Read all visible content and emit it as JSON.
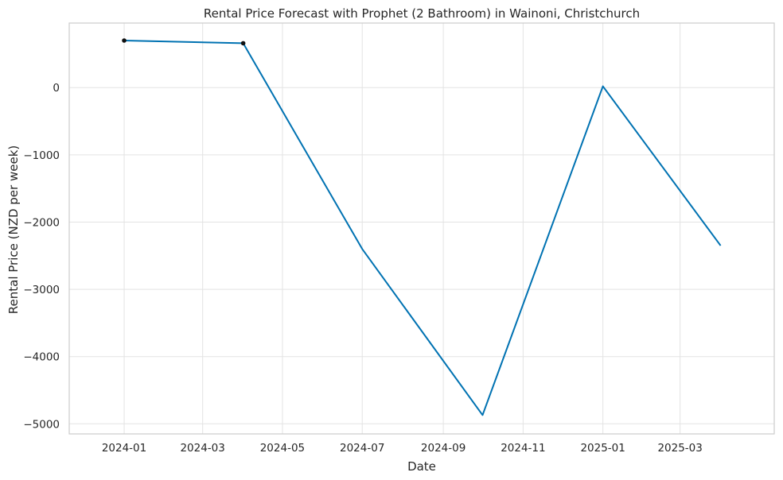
{
  "chart_data": {
    "type": "line",
    "title": "Rental Price Forecast with Prophet (2 Bathroom) in Wainoni, Christchurch",
    "xlabel": "Date",
    "ylabel": "Rental Price (NZD per week)",
    "x_ticks": [
      "2024-01",
      "2024-03",
      "2024-05",
      "2024-07",
      "2024-09",
      "2024-11",
      "2025-01",
      "2025-03"
    ],
    "y_ticks": [
      0,
      -1000,
      -2000,
      -3000,
      -4000,
      -5000
    ],
    "y_tick_labels": [
      "0",
      "−1000",
      "−2000",
      "−3000",
      "−4000",
      "−5000"
    ],
    "xlim": [
      "2023-11-20",
      "2025-05-12"
    ],
    "ylim": [
      -5150,
      960
    ],
    "grid": true,
    "series": [
      {
        "values": [
          {
            "x": "2024-01-01",
            "y": 700
          },
          {
            "x": "2024-04-01",
            "y": 660
          },
          {
            "x": "2024-07-01",
            "y": -2400
          },
          {
            "x": "2024-10-01",
            "y": -4870
          },
          {
            "x": "2025-01-01",
            "y": 20
          },
          {
            "x": "2025-04-01",
            "y": -2350
          }
        ],
        "color": "#0072b2"
      }
    ],
    "observed_points": [
      {
        "x": "2024-01-01",
        "y": 700
      },
      {
        "x": "2024-04-01",
        "y": 660
      }
    ]
  }
}
